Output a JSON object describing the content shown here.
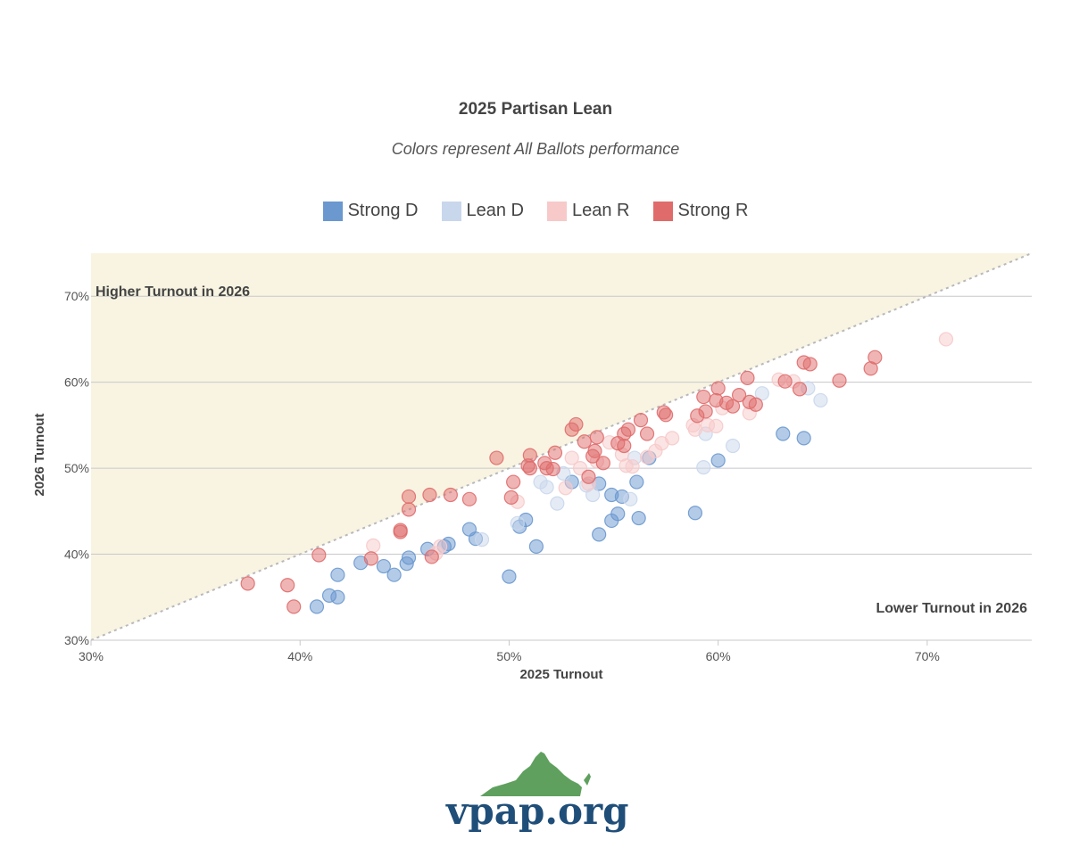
{
  "chart_data": {
    "type": "scatter",
    "title": "2025 Partisan Lean",
    "subtitle": "Colors represent All Ballots performance",
    "xlabel": "2025 Turnout",
    "ylabel": "2026 Turnout",
    "xlim": [
      30,
      75
    ],
    "ylim": [
      30,
      75
    ],
    "x_ticks": [
      30,
      40,
      50,
      60,
      70
    ],
    "y_ticks": [
      30,
      40,
      50,
      60,
      70
    ],
    "x_tick_labels": [
      "30%",
      "40%",
      "50%",
      "60%",
      "70%"
    ],
    "y_tick_labels": [
      "30%",
      "40%",
      "50%",
      "60%",
      "70%"
    ],
    "grid": "horizontal",
    "reference_line": "y = x (dotted)",
    "shaded_region": "above y = x",
    "annotations": {
      "upper_left": "Higher Turnout in 2026",
      "lower_right": "Lower Turnout in 2026"
    },
    "legend_position": "top-center",
    "series": [
      {
        "name": "Strong D",
        "color": "#6a98cf",
        "points": [
          [
            40.8,
            33.9
          ],
          [
            41.4,
            35.2
          ],
          [
            41.8,
            35.0
          ],
          [
            41.8,
            37.6
          ],
          [
            42.9,
            39.0
          ],
          [
            44.0,
            38.6
          ],
          [
            44.5,
            37.6
          ],
          [
            45.1,
            38.9
          ],
          [
            45.2,
            39.6
          ],
          [
            46.1,
            40.6
          ],
          [
            46.9,
            40.9
          ],
          [
            47.1,
            41.2
          ],
          [
            48.1,
            42.9
          ],
          [
            48.4,
            41.8
          ],
          [
            50.0,
            37.4
          ],
          [
            50.5,
            43.2
          ],
          [
            50.8,
            44.0
          ],
          [
            51.3,
            40.9
          ],
          [
            53.0,
            48.4
          ],
          [
            54.3,
            42.3
          ],
          [
            54.3,
            48.2
          ],
          [
            54.9,
            46.9
          ],
          [
            54.9,
            43.9
          ],
          [
            55.2,
            44.7
          ],
          [
            55.4,
            46.7
          ],
          [
            56.1,
            48.4
          ],
          [
            56.2,
            44.2
          ],
          [
            56.7,
            51.2
          ],
          [
            58.9,
            44.8
          ],
          [
            60.0,
            50.9
          ],
          [
            63.1,
            54.0
          ],
          [
            64.1,
            53.5
          ]
        ]
      },
      {
        "name": "Lean D",
        "color": "#c9d7ec",
        "points": [
          [
            48.7,
            41.7
          ],
          [
            50.4,
            43.6
          ],
          [
            51.5,
            48.4
          ],
          [
            51.8,
            47.8
          ],
          [
            52.3,
            45.9
          ],
          [
            52.6,
            49.4
          ],
          [
            53.7,
            48.0
          ],
          [
            54.0,
            46.9
          ],
          [
            55.8,
            46.4
          ],
          [
            56.0,
            51.2
          ],
          [
            59.3,
            50.1
          ],
          [
            59.4,
            54.0
          ],
          [
            60.7,
            52.6
          ],
          [
            62.1,
            58.7
          ],
          [
            64.3,
            59.3
          ],
          [
            64.9,
            57.9
          ]
        ]
      },
      {
        "name": "Lean R",
        "color": "#f7c9c9",
        "points": [
          [
            43.5,
            41.0
          ],
          [
            46.5,
            40.1
          ],
          [
            46.7,
            40.9
          ],
          [
            50.4,
            46.1
          ],
          [
            52.7,
            47.7
          ],
          [
            53.0,
            51.2
          ],
          [
            53.4,
            50.0
          ],
          [
            53.8,
            48.2
          ],
          [
            54.2,
            50.8
          ],
          [
            54.8,
            53.0
          ],
          [
            55.4,
            51.6
          ],
          [
            55.6,
            50.3
          ],
          [
            55.9,
            50.2
          ],
          [
            56.6,
            51.3
          ],
          [
            57.0,
            52.0
          ],
          [
            57.3,
            52.9
          ],
          [
            57.8,
            53.5
          ],
          [
            58.8,
            55.0
          ],
          [
            58.9,
            54.5
          ],
          [
            59.5,
            55.0
          ],
          [
            59.9,
            54.9
          ],
          [
            60.2,
            57.0
          ],
          [
            61.5,
            56.4
          ],
          [
            62.9,
            60.3
          ],
          [
            63.6,
            60.1
          ],
          [
            70.9,
            65.0
          ]
        ]
      },
      {
        "name": "Strong R",
        "color": "#e06b6b",
        "points": [
          [
            37.5,
            36.6
          ],
          [
            39.4,
            36.4
          ],
          [
            39.7,
            33.9
          ],
          [
            40.9,
            39.9
          ],
          [
            43.4,
            39.5
          ],
          [
            44.8,
            42.8
          ],
          [
            44.8,
            42.6
          ],
          [
            45.2,
            46.7
          ],
          [
            45.2,
            45.2
          ],
          [
            46.2,
            46.9
          ],
          [
            46.3,
            39.7
          ],
          [
            47.2,
            46.9
          ],
          [
            48.1,
            46.4
          ],
          [
            49.4,
            51.2
          ],
          [
            50.1,
            46.6
          ],
          [
            50.2,
            48.4
          ],
          [
            50.9,
            50.3
          ],
          [
            51.0,
            51.5
          ],
          [
            51.0,
            50.0
          ],
          [
            51.7,
            50.6
          ],
          [
            51.8,
            50.0
          ],
          [
            52.1,
            49.9
          ],
          [
            52.2,
            51.8
          ],
          [
            53.0,
            54.5
          ],
          [
            53.2,
            55.1
          ],
          [
            53.6,
            53.1
          ],
          [
            53.8,
            49.0
          ],
          [
            54.0,
            51.4
          ],
          [
            54.1,
            52.0
          ],
          [
            54.2,
            53.6
          ],
          [
            54.5,
            50.6
          ],
          [
            55.2,
            52.9
          ],
          [
            55.5,
            52.6
          ],
          [
            55.5,
            54.0
          ],
          [
            55.7,
            54.5
          ],
          [
            56.3,
            55.6
          ],
          [
            56.6,
            54.0
          ],
          [
            57.4,
            56.5
          ],
          [
            57.5,
            56.2
          ],
          [
            59.0,
            56.1
          ],
          [
            59.3,
            58.3
          ],
          [
            59.4,
            56.6
          ],
          [
            59.9,
            57.9
          ],
          [
            60.0,
            59.3
          ],
          [
            60.4,
            57.6
          ],
          [
            60.7,
            57.2
          ],
          [
            61.0,
            58.5
          ],
          [
            61.4,
            60.5
          ],
          [
            61.5,
            57.7
          ],
          [
            61.8,
            57.4
          ],
          [
            63.2,
            60.1
          ],
          [
            63.9,
            59.2
          ],
          [
            64.1,
            62.3
          ],
          [
            64.4,
            62.1
          ],
          [
            65.8,
            60.2
          ],
          [
            67.3,
            61.6
          ],
          [
            67.5,
            62.9
          ]
        ]
      }
    ]
  },
  "branding": {
    "logo_text": "vpap.org",
    "logo_colors": {
      "state_shape": "#5fa05f",
      "text": "#1f4e79"
    }
  },
  "colors": {
    "region_fill": "#f8f4e1",
    "gridline": "#c8c8cc",
    "reference_line": "#b8b8bc"
  }
}
